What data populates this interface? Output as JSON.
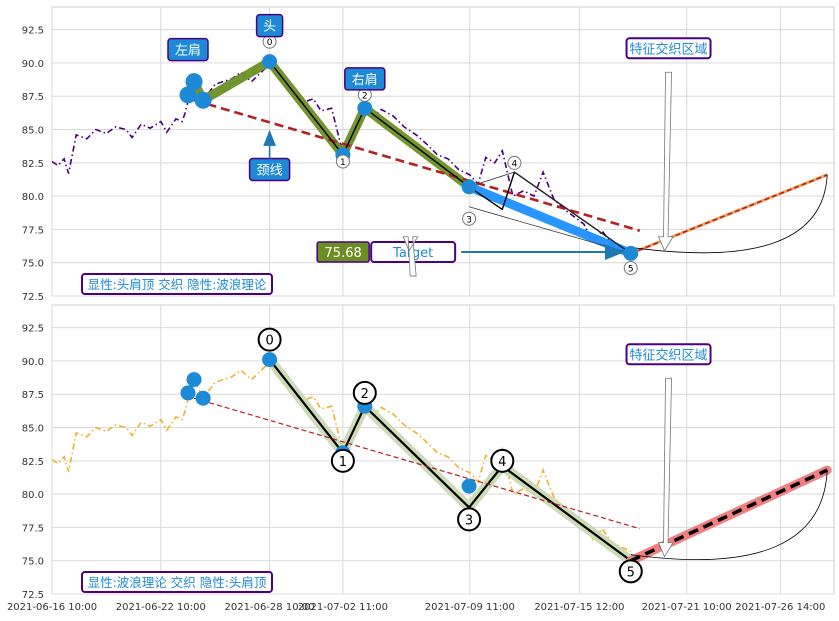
{
  "chart_data": [
    {
      "type": "line",
      "panel": "top",
      "x_type": "date",
      "xlim": [
        "2021-06-16 10:00",
        "2021-07-29 13:00"
      ],
      "ylim": [
        72.5,
        94.2
      ],
      "yticks": [
        72.5,
        75.0,
        77.5,
        80.0,
        82.5,
        85.0,
        87.5,
        90.0,
        92.5
      ],
      "grid": true,
      "series": [
        {
          "style": "dashdot",
          "color": "#4b0082",
          "points": [
            [
              "2021-06-16 10:00",
              82.6
            ],
            [
              "2021-06-16 18:00",
              82.3
            ],
            [
              "2021-06-17 02:00",
              82.8
            ],
            [
              "2021-06-17 08:00",
              81.7
            ],
            [
              "2021-06-17 18:00",
              84.6
            ],
            [
              "2021-06-18 08:00",
              84.3
            ],
            [
              "2021-06-18 20:00",
              85.0
            ],
            [
              "2021-06-19 10:00",
              84.7
            ],
            [
              "2021-06-19 22:00",
              85.2
            ],
            [
              "2021-06-20 12:00",
              85.0
            ],
            [
              "2021-06-20 20:00",
              84.4
            ],
            [
              "2021-06-21 08:00",
              85.4
            ],
            [
              "2021-06-21 20:00",
              85.1
            ],
            [
              "2021-06-22 10:00",
              85.6
            ],
            [
              "2021-06-22 18:00",
              84.8
            ],
            [
              "2021-06-23 06:00",
              85.8
            ],
            [
              "2021-06-23 14:00",
              85.6
            ],
            [
              "2021-06-23 18:00",
              86.2
            ],
            [
              "2021-06-24 00:00",
              87.6
            ],
            [
              "2021-06-24 06:00",
              88.6
            ],
            [
              "2021-06-24 18:00",
              87.2
            ],
            [
              "2021-06-25 10:00",
              88.4
            ],
            [
              "2021-06-26 08:00",
              88.8
            ],
            [
              "2021-06-26 20:00",
              89.3
            ],
            [
              "2021-06-27 10:00",
              88.6
            ],
            [
              "2021-06-28 10:00",
              89.9
            ],
            [
              "2021-06-28 20:00",
              89.0
            ],
            [
              "2021-06-29 12:00",
              88.0
            ],
            [
              "2021-06-30 04:00",
              87.0
            ],
            [
              "2021-06-30 20:00",
              87.3
            ],
            [
              "2021-07-01 06:00",
              86.4
            ],
            [
              "2021-07-01 20:00",
              86.6
            ],
            [
              "2021-07-02 11:00",
              83.2
            ],
            [
              "2021-07-02 20:00",
              83.6
            ],
            [
              "2021-07-03 06:00",
              84.8
            ],
            [
              "2021-07-03 16:00",
              86.4
            ],
            [
              "2021-07-04 02:00",
              85.9
            ],
            [
              "2021-07-04 14:00",
              86.5
            ],
            [
              "2021-07-05 06:00",
              86.0
            ],
            [
              "2021-07-05 20:00",
              85.2
            ],
            [
              "2021-07-06 12:00",
              84.6
            ],
            [
              "2021-07-07 02:00",
              83.9
            ],
            [
              "2021-07-07 16:00",
              83.1
            ],
            [
              "2021-07-08 06:00",
              82.8
            ],
            [
              "2021-07-08 20:00",
              82.0
            ],
            [
              "2021-07-09 11:00",
              81.6
            ],
            [
              "2021-07-09 22:00",
              80.9
            ],
            [
              "2021-07-10 08:00",
              82.9
            ],
            [
              "2021-07-10 20:00",
              82.5
            ],
            [
              "2021-07-11 06:00",
              83.4
            ],
            [
              "2021-07-11 20:00",
              80.0
            ],
            [
              "2021-07-12 10:00",
              80.4
            ],
            [
              "2021-07-13 00:00",
              80.0
            ],
            [
              "2021-07-13 12:00",
              81.8
            ],
            [
              "2021-07-14 02:00",
              79.8
            ],
            [
              "2021-07-14 14:00",
              79.1
            ],
            [
              "2021-07-15 04:00",
              78.5
            ],
            [
              "2021-07-15 18:00",
              77.9
            ],
            [
              "2021-07-16 06:00",
              76.5
            ],
            [
              "2021-07-16 18:00",
              77.4
            ],
            [
              "2021-07-17 08:00",
              76.3
            ],
            [
              "2021-07-17 20:00",
              76.0
            ],
            [
              "2021-07-18 08:00",
              75.7
            ]
          ]
        },
        {
          "style": "thick-band",
          "color": "#6b8e23",
          "points": [
            [
              "2021-06-23 22:00",
              87.6
            ],
            [
              "2021-06-24 06:00",
              88.6
            ],
            [
              "2021-06-24 18:00",
              87.2
            ],
            [
              "2021-06-28 10:00",
              90.1
            ],
            [
              "2021-07-02 11:00",
              83.1
            ],
            [
              "2021-07-03 16:00",
              86.6
            ],
            [
              "2021-07-09 10:00",
              80.7
            ]
          ]
        },
        {
          "style": "thick-band",
          "color": "#1e90ff",
          "points": [
            [
              "2021-07-09 10:00",
              80.7
            ],
            [
              "2021-07-18 08:00",
              75.7
            ]
          ]
        },
        {
          "style": "dashed",
          "color": "#b22222",
          "name_label": "颈线",
          "points": [
            [
              "2021-06-24 06:00",
              87.2
            ],
            [
              "2021-07-18 20:00",
              77.4
            ]
          ]
        },
        {
          "style": "solid",
          "color": "#000000",
          "points": [
            [
              "2021-06-28 10:00",
              90.1
            ],
            [
              "2021-07-02 11:00",
              83.1
            ],
            [
              "2021-07-03 16:00",
              86.6
            ],
            [
              "2021-07-09 10:00",
              80.7
            ],
            [
              "2021-07-11 06:00",
              79.0
            ],
            [
              "2021-07-11 22:00",
              81.8
            ],
            [
              "2021-07-18 08:00",
              75.7
            ]
          ]
        },
        {
          "style": "dashed-bold",
          "color": "#b22222",
          "points": [
            [
              "2021-07-18 08:00",
              75.7
            ],
            [
              "2021-07-29 04:00",
              81.6
            ]
          ]
        }
      ],
      "markers": [
        {
          "x": "2021-06-23 22:00",
          "y": 87.6
        },
        {
          "x": "2021-06-24 06:00",
          "y": 88.6
        },
        {
          "x": "2021-06-24 18:00",
          "y": 87.2
        },
        {
          "x": "2021-06-28 10:00",
          "y": 90.1
        },
        {
          "x": "2021-07-02 11:00",
          "y": 83.1
        },
        {
          "x": "2021-07-03 16:00",
          "y": 86.6
        },
        {
          "x": "2021-07-09 10:00",
          "y": 80.7
        },
        {
          "x": "2021-07-18 08:00",
          "y": 75.7
        }
      ],
      "wave_labels": [
        {
          "text": "0",
          "x": "2021-06-28 10:00",
          "y": 91.6
        },
        {
          "text": "1",
          "x": "2021-07-02 11:00",
          "y": 82.6
        },
        {
          "text": "2",
          "x": "2021-07-03 16:00",
          "y": 87.6
        },
        {
          "text": "3",
          "x": "2021-07-09 10:00",
          "y": 78.3
        },
        {
          "text": "4",
          "x": "2021-07-11 22:00",
          "y": 82.5
        },
        {
          "text": "5",
          "x": "2021-07-18 08:00",
          "y": 74.6
        }
      ],
      "annotations": [
        {
          "text": "左肩",
          "x": "2021-06-23 22:00",
          "y": 91.0
        },
        {
          "text": "头",
          "x": "2021-06-28 10:00",
          "y": 92.8
        },
        {
          "text": "右肩",
          "x": "2021-07-03 16:00",
          "y": 88.8
        },
        {
          "text": "颈线",
          "x": "2021-06-28 10:00",
          "y": 82.0
        },
        {
          "text": "特征交织区域",
          "x": "2021-07-20 10:00",
          "y": 91.1
        },
        {
          "text": "Target",
          "x": "2021-07-06 08:00",
          "y": 75.8
        }
      ],
      "target_value": "75.68",
      "footer_label": "显性:头肩顶 交织 隐性:波浪理论"
    },
    {
      "type": "line",
      "panel": "bottom",
      "x_type": "date",
      "xlim": [
        "2021-06-16 10:00",
        "2021-07-29 13:00"
      ],
      "ylim": [
        72.5,
        94.2
      ],
      "yticks": [
        72.5,
        75.0,
        77.5,
        80.0,
        82.5,
        85.0,
        87.5,
        90.0,
        92.5
      ],
      "xticks": [
        "2021-06-16 10:00",
        "2021-06-22 10:00",
        "2021-06-28 10:00",
        "2021-07-02 11:00",
        "2021-07-09 11:00",
        "2021-07-15 12:00",
        "2021-07-21 10:00",
        "2021-07-26 14:00"
      ],
      "grid": true,
      "series": [
        {
          "style": "dashdot",
          "color": "#f0b030",
          "points": [
            [
              "2021-06-16 10:00",
              82.6
            ],
            [
              "2021-06-16 18:00",
              82.3
            ],
            [
              "2021-06-17 02:00",
              82.8
            ],
            [
              "2021-06-17 08:00",
              81.7
            ],
            [
              "2021-06-17 18:00",
              84.6
            ],
            [
              "2021-06-18 08:00",
              84.3
            ],
            [
              "2021-06-18 20:00",
              85.0
            ],
            [
              "2021-06-19 10:00",
              84.7
            ],
            [
              "2021-06-19 22:00",
              85.2
            ],
            [
              "2021-06-20 12:00",
              85.0
            ],
            [
              "2021-06-20 20:00",
              84.4
            ],
            [
              "2021-06-21 08:00",
              85.4
            ],
            [
              "2021-06-21 20:00",
              85.1
            ],
            [
              "2021-06-22 10:00",
              85.6
            ],
            [
              "2021-06-22 18:00",
              84.8
            ],
            [
              "2021-06-23 06:00",
              85.8
            ],
            [
              "2021-06-23 14:00",
              85.6
            ],
            [
              "2021-06-23 18:00",
              86.2
            ],
            [
              "2021-06-24 00:00",
              87.6
            ],
            [
              "2021-06-24 06:00",
              88.6
            ],
            [
              "2021-06-24 18:00",
              87.2
            ],
            [
              "2021-06-25 10:00",
              88.4
            ],
            [
              "2021-06-26 08:00",
              88.8
            ],
            [
              "2021-06-26 20:00",
              89.3
            ],
            [
              "2021-06-27 10:00",
              88.6
            ],
            [
              "2021-06-28 10:00",
              89.9
            ],
            [
              "2021-06-28 20:00",
              89.0
            ],
            [
              "2021-06-29 12:00",
              88.0
            ],
            [
              "2021-06-30 04:00",
              87.0
            ],
            [
              "2021-06-30 20:00",
              87.3
            ],
            [
              "2021-07-01 06:00",
              86.4
            ],
            [
              "2021-07-01 20:00",
              86.6
            ],
            [
              "2021-07-02 11:00",
              83.2
            ],
            [
              "2021-07-02 20:00",
              83.6
            ],
            [
              "2021-07-03 06:00",
              84.8
            ],
            [
              "2021-07-03 16:00",
              86.4
            ],
            [
              "2021-07-04 02:00",
              85.9
            ],
            [
              "2021-07-04 14:00",
              86.5
            ],
            [
              "2021-07-05 06:00",
              86.0
            ],
            [
              "2021-07-05 20:00",
              85.2
            ],
            [
              "2021-07-06 12:00",
              84.6
            ],
            [
              "2021-07-07 02:00",
              83.9
            ],
            [
              "2021-07-07 16:00",
              83.1
            ],
            [
              "2021-07-08 06:00",
              82.8
            ],
            [
              "2021-07-08 20:00",
              82.0
            ],
            [
              "2021-07-09 11:00",
              81.6
            ],
            [
              "2021-07-09 22:00",
              80.9
            ],
            [
              "2021-07-10 08:00",
              82.9
            ],
            [
              "2021-07-10 20:00",
              82.5
            ],
            [
              "2021-07-11 06:00",
              83.4
            ],
            [
              "2021-07-11 20:00",
              80.0
            ],
            [
              "2021-07-12 10:00",
              80.4
            ],
            [
              "2021-07-13 00:00",
              80.0
            ],
            [
              "2021-07-13 12:00",
              81.8
            ],
            [
              "2021-07-14 02:00",
              79.8
            ],
            [
              "2021-07-14 14:00",
              79.1
            ],
            [
              "2021-07-15 04:00",
              78.5
            ],
            [
              "2021-07-15 18:00",
              77.9
            ],
            [
              "2021-07-16 06:00",
              76.5
            ],
            [
              "2021-07-16 18:00",
              77.4
            ],
            [
              "2021-07-17 08:00",
              76.3
            ],
            [
              "2021-07-17 20:00",
              76.0
            ],
            [
              "2021-07-18 08:00",
              75.7
            ]
          ]
        },
        {
          "style": "thick-band",
          "color": "#c8d8b0",
          "points": [
            [
              "2021-06-28 10:00",
              90.1
            ],
            [
              "2021-07-02 11:00",
              83.1
            ],
            [
              "2021-07-03 16:00",
              86.6
            ],
            [
              "2021-07-09 10:00",
              79.0
            ],
            [
              "2021-07-11 06:00",
              82.1
            ],
            [
              "2021-07-18 08:00",
              75.0
            ]
          ]
        },
        {
          "style": "solid",
          "color": "#000000",
          "points": [
            [
              "2021-06-28 10:00",
              90.1
            ],
            [
              "2021-07-02 11:00",
              83.1
            ],
            [
              "2021-07-03 16:00",
              86.6
            ],
            [
              "2021-07-09 10:00",
              79.0
            ],
            [
              "2021-07-11 06:00",
              82.1
            ],
            [
              "2021-07-18 08:00",
              75.0
            ]
          ]
        },
        {
          "style": "dashed",
          "color": "#b22222",
          "points": [
            [
              "2021-06-24 06:00",
              87.2
            ],
            [
              "2021-07-18 20:00",
              77.4
            ]
          ]
        },
        {
          "style": "dashed-bold",
          "color": "#000000",
          "points": [
            [
              "2021-07-18 08:00",
              75.0
            ],
            [
              "2021-07-29 04:00",
              81.8
            ]
          ]
        }
      ],
      "markers": [
        {
          "x": "2021-06-23 22:00",
          "y": 87.6
        },
        {
          "x": "2021-06-24 06:00",
          "y": 88.6
        },
        {
          "x": "2021-06-24 18:00",
          "y": 87.2
        },
        {
          "x": "2021-06-28 10:00",
          "y": 90.1
        },
        {
          "x": "2021-07-02 11:00",
          "y": 83.1
        },
        {
          "x": "2021-07-03 16:00",
          "y": 86.6
        },
        {
          "x": "2021-07-09 10:00",
          "y": 80.6
        }
      ],
      "wave_labels": [
        {
          "text": "0",
          "x": "2021-06-28 10:00",
          "y": 91.6
        },
        {
          "text": "1",
          "x": "2021-07-02 11:00",
          "y": 82.5
        },
        {
          "text": "2",
          "x": "2021-07-03 16:00",
          "y": 87.6
        },
        {
          "text": "3",
          "x": "2021-07-09 10:00",
          "y": 78.1
        },
        {
          "text": "4",
          "x": "2021-07-11 06:00",
          "y": 82.5
        },
        {
          "text": "5",
          "x": "2021-07-18 08:00",
          "y": 74.2
        }
      ],
      "annotations": [
        {
          "text": "特征交织区域",
          "x": "2021-07-20 10:00",
          "y": 90.5
        }
      ],
      "footer_label": "显性:波浪理论 交织 隐性:头肩顶"
    }
  ]
}
